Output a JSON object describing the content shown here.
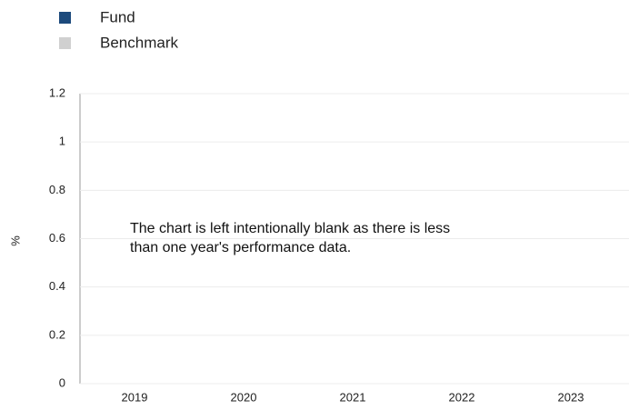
{
  "chart_data": {
    "type": "bar",
    "categories": [
      "2019",
      "2020",
      "2021",
      "2022",
      "2023"
    ],
    "series": [
      {
        "name": "Fund",
        "color": "#1c4a7c",
        "values": [
          null,
          null,
          null,
          null,
          null
        ]
      },
      {
        "name": "Benchmark",
        "color": "#d0d0d0",
        "values": [
          null,
          null,
          null,
          null,
          null
        ]
      }
    ],
    "ylabel": "%",
    "ylim": [
      0,
      1.2
    ],
    "yticks": [
      0,
      0.2,
      0.4,
      0.6,
      0.8,
      1,
      1.2
    ],
    "grid": true,
    "annotation": [
      "The chart is left intentionally blank as there is less",
      "than one year's performance data."
    ]
  }
}
